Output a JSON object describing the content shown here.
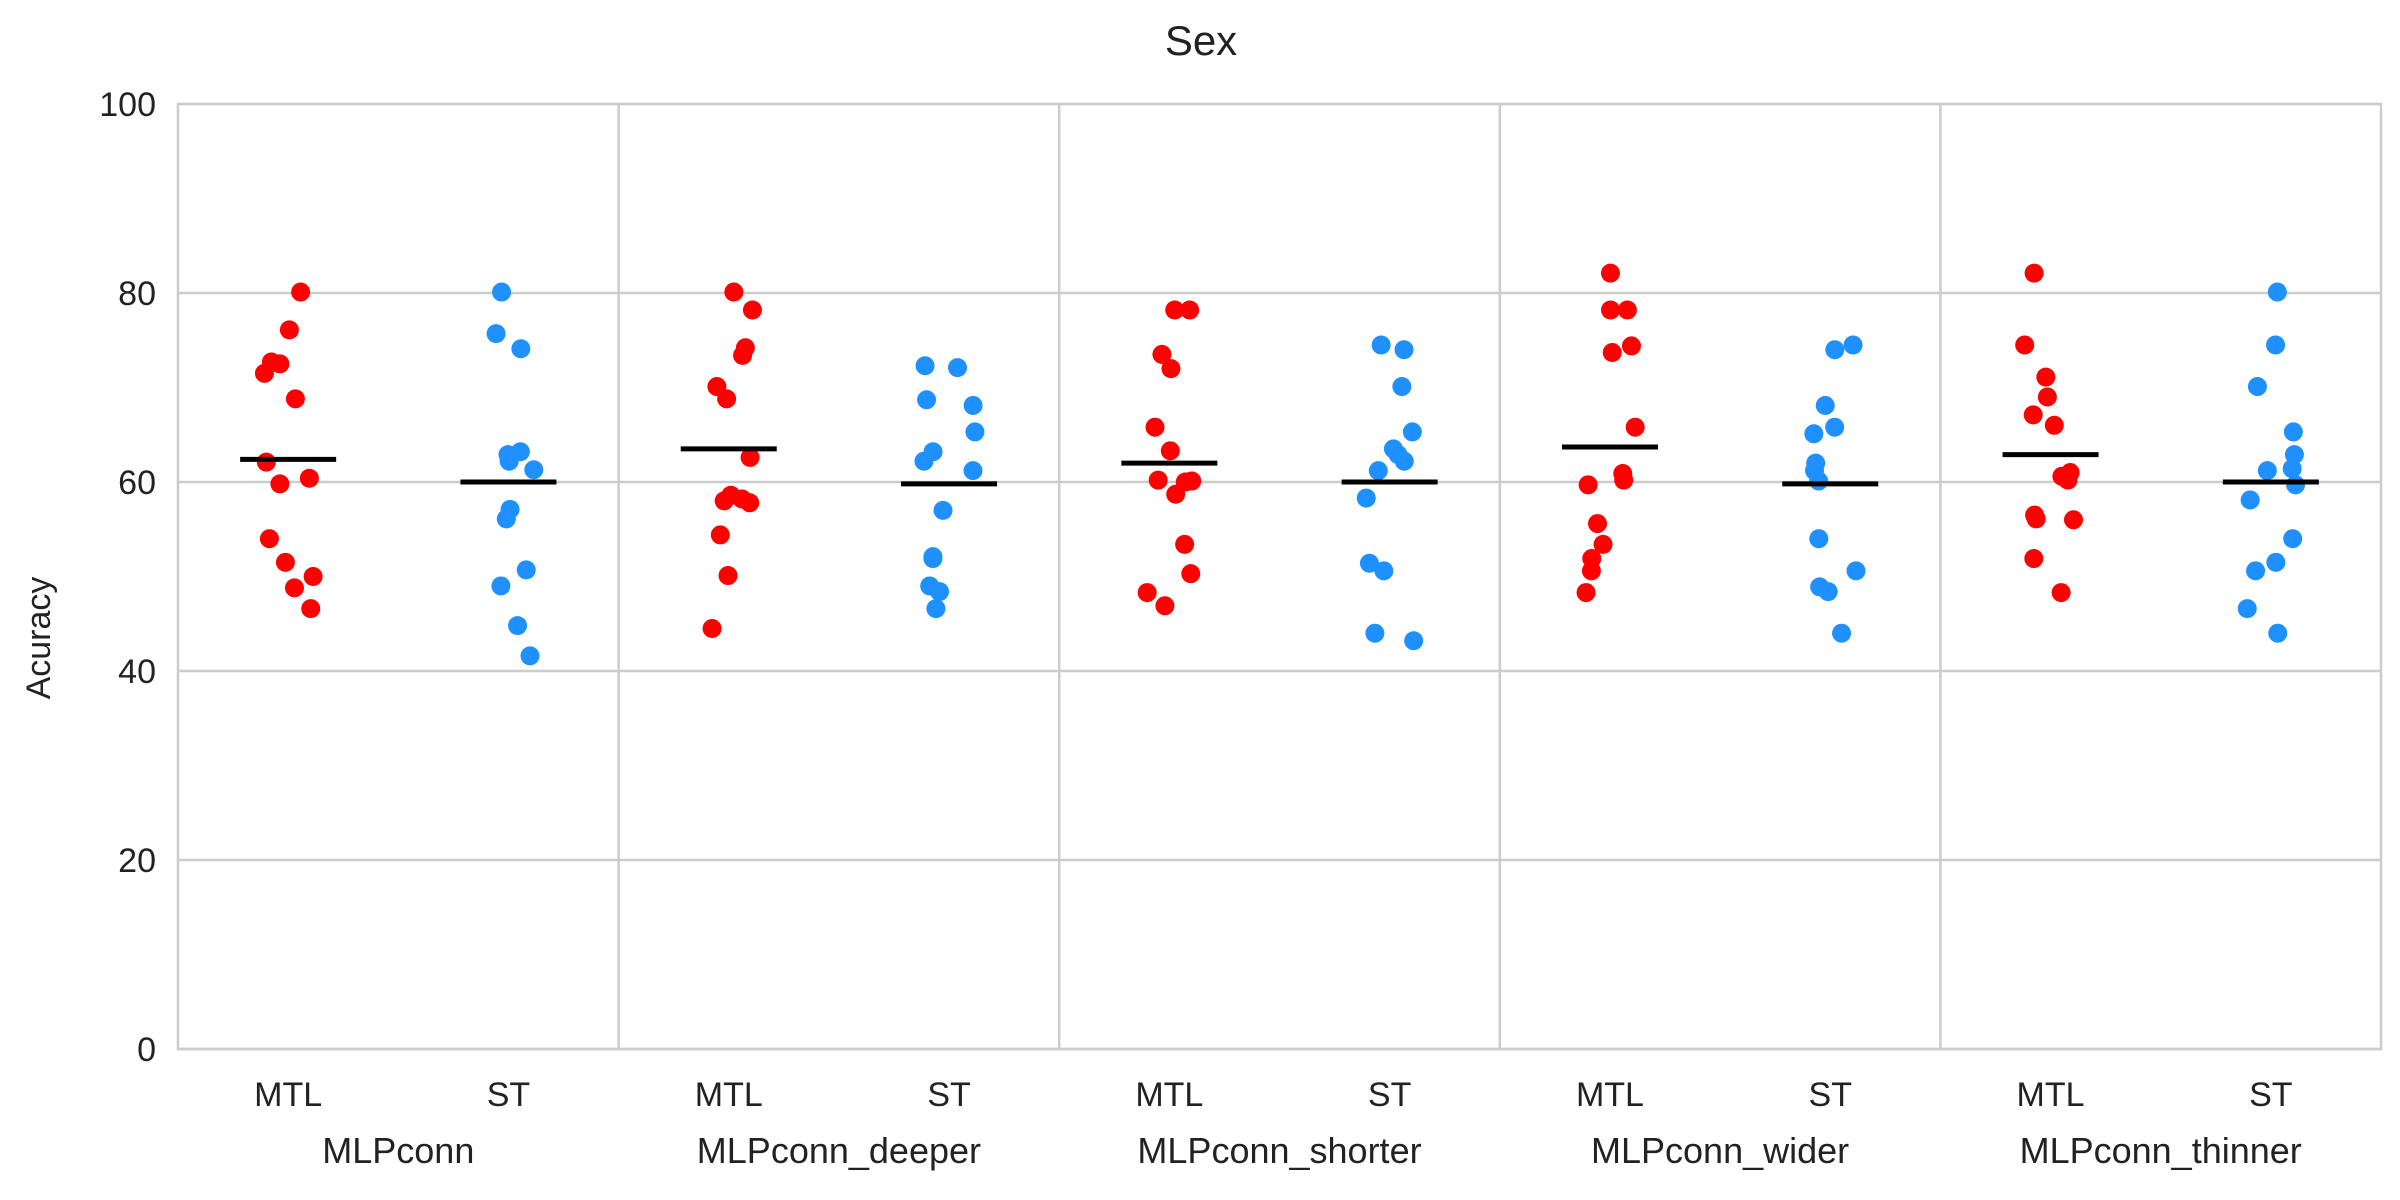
{
  "chart_data": {
    "type": "scatter",
    "title": "Sex",
    "xlabel": "",
    "ylabel": "Acuracy",
    "ylim": [
      0,
      100
    ],
    "yticks": [
      0,
      20,
      40,
      60,
      80,
      100
    ],
    "grid": true,
    "legend": "none",
    "groups": [
      "MLPconn",
      "MLPconn_deeper",
      "MLPconn_shorter",
      "MLPconn_wider",
      "MLPconn_thinner"
    ],
    "subcategories": [
      "MTL",
      "ST"
    ],
    "colors": {
      "MTL": "#ff0000",
      "ST": "#1e90ff",
      "mean": "#000000",
      "grid": "#cccccc"
    },
    "series": [
      {
        "group": "MLPconn",
        "category": "MTL",
        "mean": 62.4,
        "values": [
          80.1,
          76.1,
          72.5,
          71.5,
          72.7,
          68.8,
          62.1,
          60.4,
          59.8,
          54.0,
          51.5,
          50.0,
          48.8,
          46.6
        ]
      },
      {
        "group": "MLPconn",
        "category": "ST",
        "mean": 60.0,
        "values": [
          80.1,
          75.7,
          74.1,
          62.9,
          62.2,
          61.3,
          63.2,
          57.1,
          56.1,
          50.7,
          49.0,
          44.8,
          41.6
        ]
      },
      {
        "group": "MLPconn_deeper",
        "category": "MTL",
        "mean": 63.5,
        "values": [
          78.2,
          80.1,
          74.2,
          73.4,
          70.1,
          68.8,
          62.6,
          58.6,
          57.8,
          58.2,
          58.0,
          54.4,
          50.1,
          44.5
        ]
      },
      {
        "group": "MLPconn_deeper",
        "category": "ST",
        "mean": 59.8,
        "values": [
          72.1,
          72.3,
          68.7,
          68.1,
          65.3,
          63.2,
          62.2,
          61.2,
          57.0,
          52.1,
          51.9,
          49.0,
          48.4,
          46.6
        ]
      },
      {
        "group": "MLPconn_shorter",
        "category": "MTL",
        "mean": 62.0,
        "values": [
          78.2,
          78.2,
          73.5,
          72.0,
          65.8,
          63.3,
          60.1,
          60.0,
          60.2,
          58.7,
          53.4,
          50.3,
          48.3,
          46.9
        ]
      },
      {
        "group": "MLPconn_shorter",
        "category": "ST",
        "mean": 60.0,
        "values": [
          74.5,
          74.0,
          70.1,
          65.3,
          62.9,
          62.2,
          63.5,
          61.2,
          58.3,
          51.4,
          50.6,
          44.0,
          43.2
        ]
      },
      {
        "group": "MLPconn_wider",
        "category": "MTL",
        "mean": 63.7,
        "values": [
          82.1,
          78.2,
          78.2,
          74.4,
          73.7,
          65.8,
          60.9,
          60.2,
          59.7,
          55.6,
          53.4,
          51.9,
          50.6,
          48.3
        ]
      },
      {
        "group": "MLPconn_wider",
        "category": "ST",
        "mean": 59.8,
        "values": [
          74.5,
          74.0,
          68.1,
          65.8,
          65.1,
          62.0,
          61.2,
          60.1,
          54.0,
          50.6,
          48.9,
          48.4,
          44.0
        ]
      },
      {
        "group": "MLPconn_thinner",
        "category": "MTL",
        "mean": 62.9,
        "values": [
          82.1,
          74.5,
          71.1,
          69.0,
          67.1,
          66.0,
          61.0,
          60.6,
          60.2,
          56.5,
          56.0,
          56.1,
          51.9,
          48.3
        ]
      },
      {
        "group": "MLPconn_thinner",
        "category": "ST",
        "mean": 60.0,
        "values": [
          80.1,
          74.5,
          70.1,
          65.3,
          62.9,
          61.4,
          61.2,
          59.7,
          58.1,
          54.0,
          51.5,
          50.6,
          46.6,
          44.0
        ]
      }
    ]
  }
}
